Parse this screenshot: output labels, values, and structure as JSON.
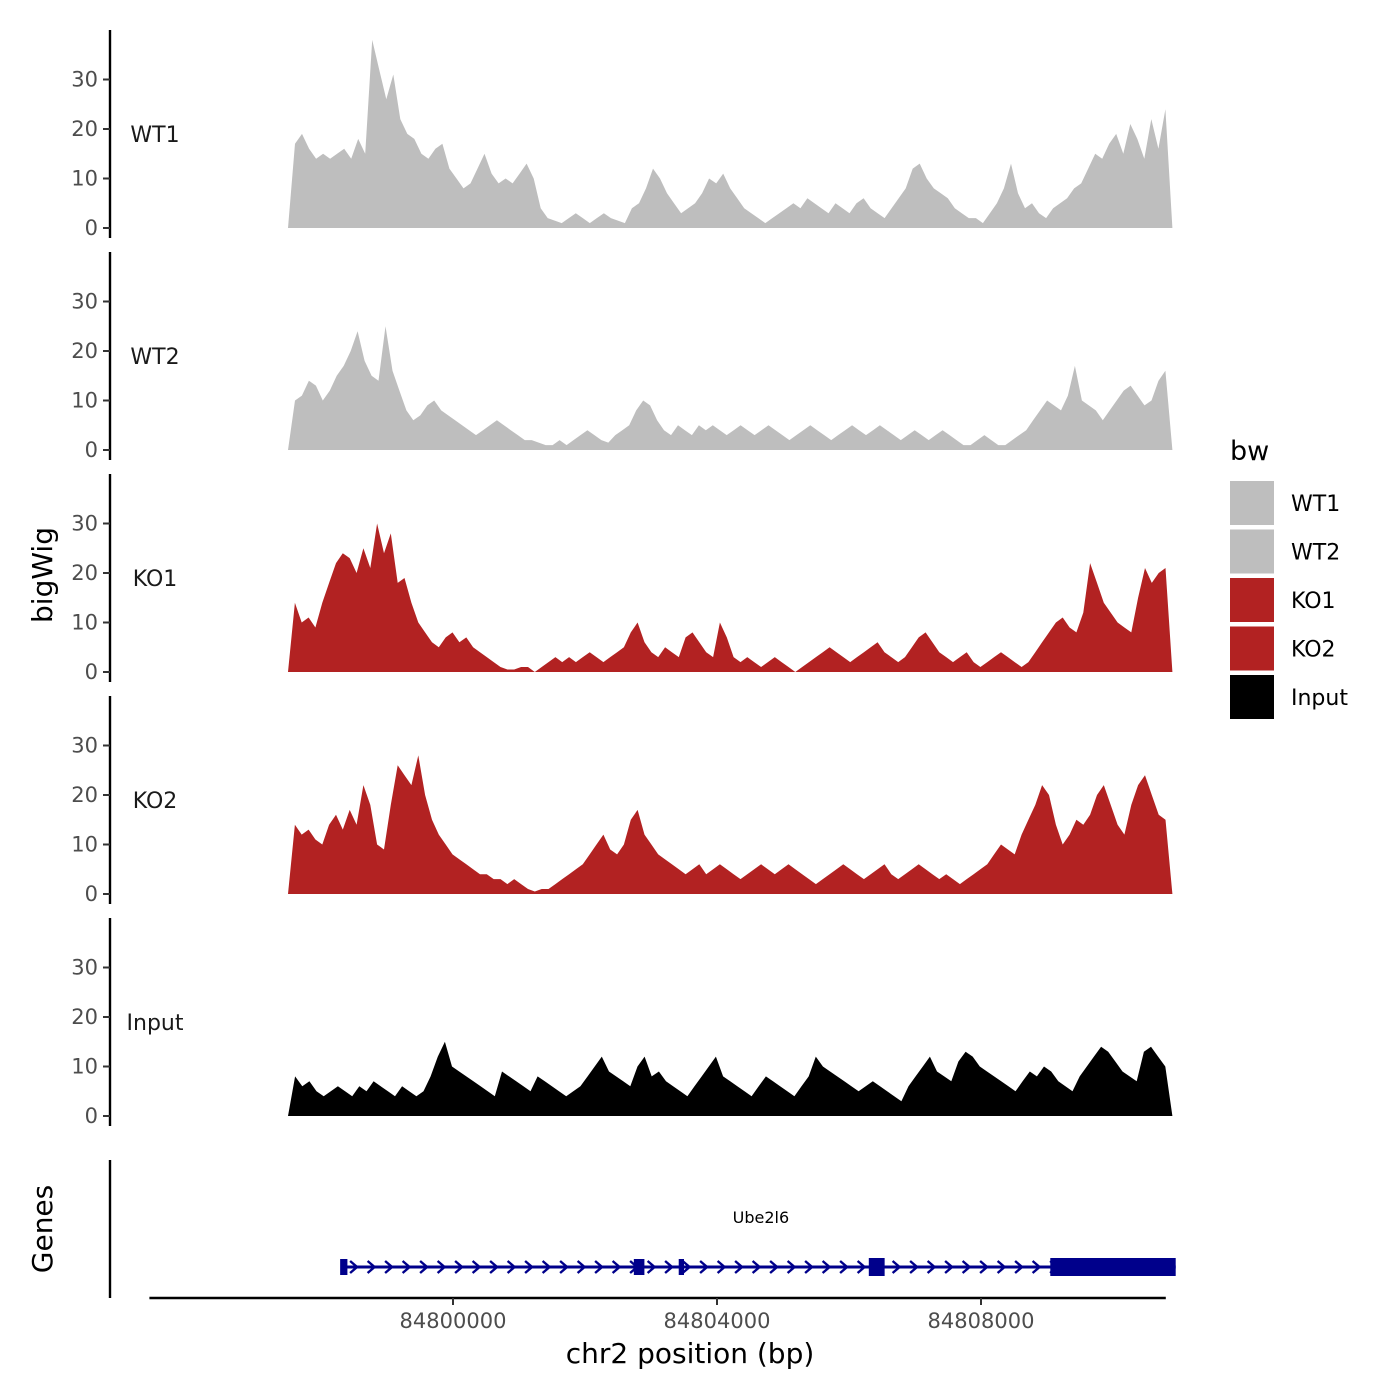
{
  "chart_data": {
    "type": "area",
    "ylabel": "bigWig",
    "xlabel": "chr2 position (bp)",
    "ylim": [
      0,
      40
    ],
    "yticks": [
      0,
      10,
      20,
      30
    ],
    "xlim": [
      84795400,
      84810800
    ],
    "xticks": [
      84800000,
      84804000,
      84808000
    ],
    "xtick_labels": [
      "84800000",
      "84804000",
      "84808000"
    ],
    "track_xrange": [
      84797500,
      84810900
    ],
    "legend_title": "bw",
    "series": [
      {
        "name": "WT1",
        "color": "#bebebe",
        "values": [
          0,
          17,
          19,
          16,
          14,
          15,
          14,
          15,
          16,
          14,
          18,
          15,
          38,
          32,
          26,
          31,
          22,
          19,
          18,
          15,
          14,
          16,
          17,
          12,
          10,
          8,
          9,
          12,
          15,
          11,
          9,
          10,
          9,
          11,
          13,
          10,
          4,
          2,
          1.5,
          1,
          2,
          3,
          2,
          1,
          2,
          3,
          2,
          1.5,
          1,
          4,
          5,
          8,
          12,
          10,
          7,
          5,
          3,
          4,
          5,
          7,
          10,
          9,
          11,
          8,
          6,
          4,
          3,
          2,
          1,
          2,
          3,
          4,
          5,
          4,
          6,
          5,
          4,
          3,
          5,
          4,
          3,
          5,
          6,
          4,
          3,
          2,
          4,
          6,
          8,
          12,
          13,
          10,
          8,
          7,
          6,
          4,
          3,
          2,
          2,
          1,
          3,
          5,
          8,
          13,
          7,
          4,
          5,
          3,
          2,
          4,
          5,
          6,
          8,
          9,
          12,
          15,
          14,
          17,
          19,
          15,
          21,
          18,
          14,
          22,
          16,
          24,
          0
        ]
      },
      {
        "name": "WT2",
        "color": "#bebebe",
        "values": [
          0,
          10,
          11,
          14,
          13,
          10,
          12,
          15,
          17,
          20,
          24,
          18,
          15,
          14,
          25,
          16,
          12,
          8,
          6,
          7,
          9,
          10,
          8,
          7,
          6,
          5,
          4,
          3,
          4,
          5,
          6,
          5,
          4,
          3,
          2,
          2,
          1.5,
          1,
          1,
          2,
          1,
          2,
          3,
          4,
          3,
          2,
          1.5,
          3,
          4,
          5,
          8,
          10,
          9,
          6,
          4,
          3,
          5,
          4,
          3,
          5,
          4,
          5,
          4,
          3,
          4,
          5,
          4,
          3,
          4,
          5,
          4,
          3,
          2,
          3,
          4,
          5,
          4,
          3,
          2,
          3,
          4,
          5,
          4,
          3,
          4,
          5,
          4,
          3,
          2,
          3,
          4,
          3,
          2,
          3,
          4,
          3,
          2,
          1,
          1,
          2,
          3,
          2,
          1,
          1,
          2,
          3,
          4,
          6,
          8,
          10,
          9,
          8,
          11,
          17,
          10,
          9,
          8,
          6,
          8,
          10,
          12,
          13,
          11,
          9,
          10,
          14,
          16,
          0
        ]
      },
      {
        "name": "KO1",
        "color": "#b22222",
        "values": [
          0,
          14,
          10,
          11,
          9,
          14,
          18,
          22,
          24,
          23,
          20,
          25,
          21,
          30,
          24,
          28,
          18,
          19,
          14,
          10,
          8,
          6,
          5,
          7,
          8,
          6,
          7,
          5,
          4,
          3,
          2,
          1,
          0.5,
          0.5,
          1,
          1,
          0,
          1,
          2,
          3,
          2,
          3,
          2,
          3,
          4,
          3,
          2,
          3,
          4,
          5,
          8,
          10,
          6,
          4,
          3,
          5,
          4,
          3,
          7,
          8,
          6,
          4,
          3,
          10,
          7,
          3,
          2,
          3,
          2,
          1,
          2,
          3,
          2,
          1,
          0,
          1,
          2,
          3,
          4,
          5,
          4,
          3,
          2,
          3,
          4,
          5,
          6,
          4,
          3,
          2,
          3,
          5,
          7,
          8,
          6,
          4,
          3,
          2,
          3,
          4,
          2,
          1,
          2,
          3,
          4,
          3,
          2,
          1,
          2,
          4,
          6,
          8,
          10,
          11,
          9,
          8,
          12,
          22,
          18,
          14,
          12,
          10,
          9,
          8,
          15,
          21,
          18,
          20,
          21,
          0
        ]
      },
      {
        "name": "KO2",
        "color": "#b22222",
        "values": [
          0,
          14,
          12,
          13,
          11,
          10,
          14,
          16,
          13,
          17,
          14,
          22,
          18,
          10,
          9,
          18,
          26,
          24,
          22,
          28,
          20,
          15,
          12,
          10,
          8,
          7,
          6,
          5,
          4,
          4,
          3,
          3,
          2,
          3,
          2,
          1,
          0.5,
          1,
          1,
          2,
          3,
          4,
          5,
          6,
          8,
          10,
          12,
          9,
          8,
          10,
          15,
          17,
          12,
          10,
          8,
          7,
          6,
          5,
          4,
          5,
          6,
          4,
          5,
          6,
          5,
          4,
          3,
          4,
          5,
          6,
          5,
          4,
          5,
          6,
          5,
          4,
          3,
          2,
          3,
          4,
          5,
          6,
          5,
          4,
          3,
          4,
          5,
          6,
          4,
          3,
          4,
          5,
          6,
          5,
          4,
          3,
          4,
          3,
          2,
          3,
          4,
          5,
          6,
          8,
          10,
          9,
          8,
          12,
          15,
          18,
          22,
          20,
          14,
          10,
          12,
          15,
          14,
          16,
          20,
          22,
          18,
          14,
          12,
          18,
          22,
          24,
          20,
          16,
          15,
          0
        ]
      },
      {
        "name": "Input",
        "color": "#000000",
        "values": [
          0,
          8,
          6,
          7,
          5,
          4,
          5,
          6,
          5,
          4,
          6,
          5,
          7,
          6,
          5,
          4,
          6,
          5,
          4,
          5,
          8,
          12,
          15,
          10,
          9,
          8,
          7,
          6,
          5,
          4,
          9,
          8,
          7,
          6,
          5,
          8,
          7,
          6,
          5,
          4,
          5,
          6,
          8,
          10,
          12,
          9,
          8,
          7,
          6,
          10,
          12,
          8,
          9,
          7,
          6,
          5,
          4,
          6,
          8,
          10,
          12,
          8,
          7,
          6,
          5,
          4,
          6,
          8,
          7,
          6,
          5,
          4,
          6,
          8,
          12,
          10,
          9,
          8,
          7,
          6,
          5,
          6,
          7,
          6,
          5,
          4,
          3,
          6,
          8,
          10,
          12,
          9,
          8,
          7,
          11,
          13,
          12,
          10,
          9,
          8,
          7,
          6,
          5,
          7,
          9,
          8,
          10,
          9,
          7,
          6,
          5,
          8,
          10,
          12,
          14,
          13,
          11,
          9,
          8,
          7,
          13,
          14,
          12,
          10,
          0
        ]
      }
    ],
    "gene_track": {
      "label": "Genes",
      "gene_name": "Ube2l6",
      "strand": "+",
      "tx_start": 84798350,
      "tx_end": 84810950,
      "exons": [
        [
          84798290,
          84798400
        ],
        [
          84802740,
          84802900
        ],
        [
          84803420,
          84803500
        ],
        [
          84806300,
          84806540
        ],
        [
          84809050,
          84810950
        ]
      ],
      "thick_exons": [
        [
          84806300,
          84806540
        ],
        [
          84809050,
          84810950
        ]
      ],
      "color": "#00008b"
    }
  }
}
